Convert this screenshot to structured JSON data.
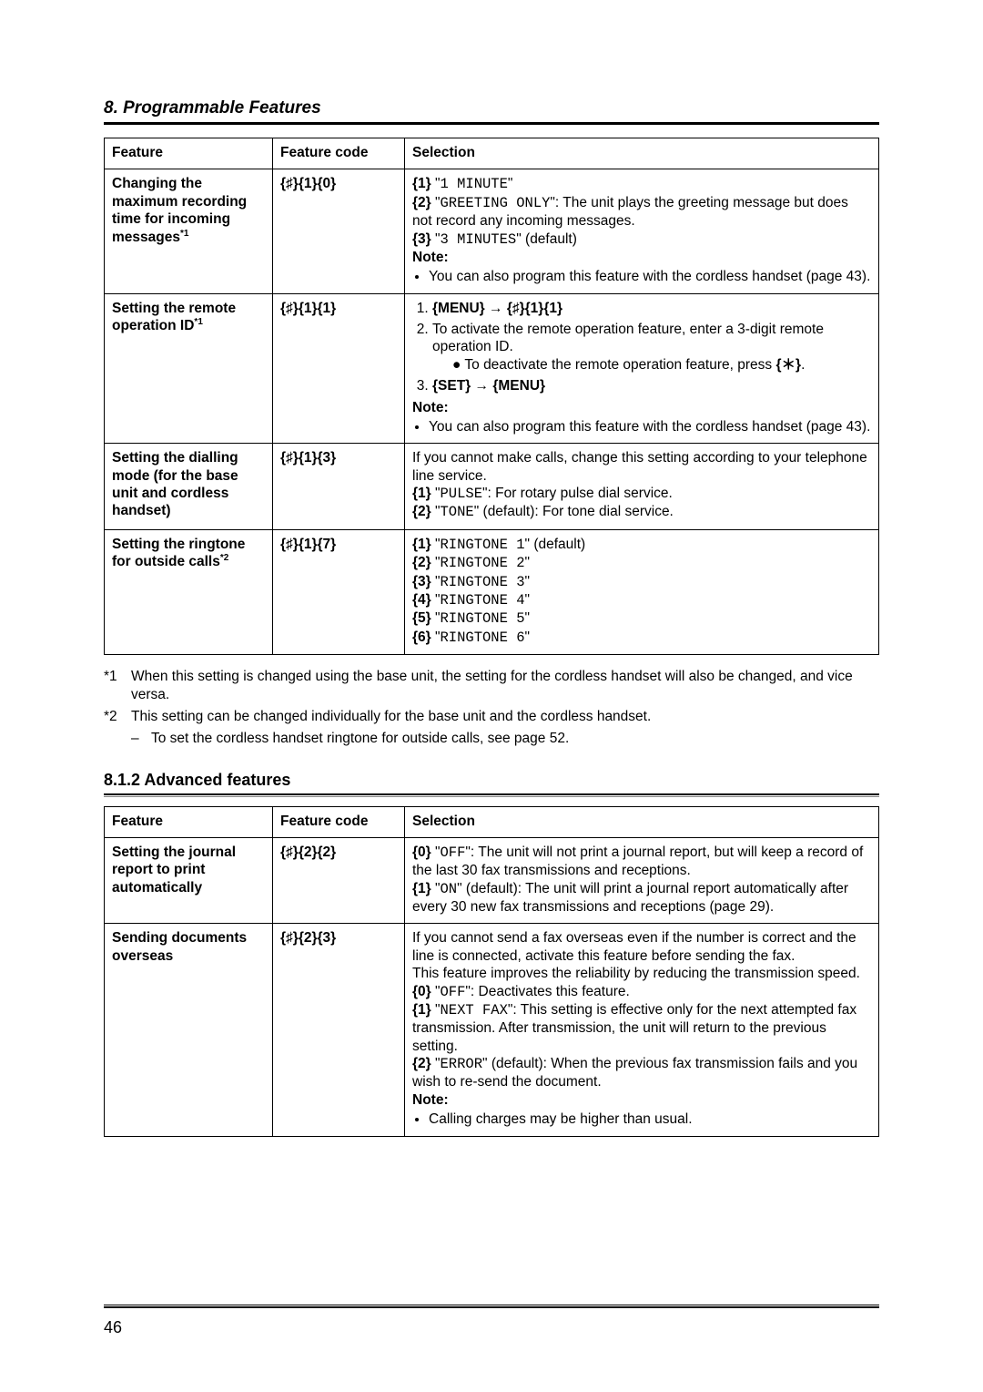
{
  "chapter": "8. Programmable Features",
  "page_number": "46",
  "table1": {
    "headers": [
      "Feature",
      "Feature code",
      "Selection"
    ],
    "rows": [
      {
        "feature_html": "<span class='b'>Changing the maximum recording time for incoming messages</span><span class='sup'>*1</span>",
        "code_html": "<span class='b'>{♯}{1}{0}</span>",
        "selection_html": "<span class='b'>{1}</span> \"<span class='mono'>1 MINUTE</span>\"<br><span class='b'>{2}</span> \"<span class='mono'>GREETING ONLY</span>\": The unit plays the greeting message but does not record any incoming messages.<br><span class='b'>{3}</span> \"<span class='mono'>3 MINUTES</span>\" (default)<br><span class='note-label'>Note:</span><ul><li class='bullet'>You can also program this feature with the cordless handset (page 43).</li></ul>"
      },
      {
        "feature_html": "<span class='b'>Setting the remote operation ID</span><span class='sup'>*1</span>",
        "code_html": "<span class='b'>{♯}{1}{1}</span>",
        "selection_html": "<ol><li><span class='b'>{MENU}</span> <span class='arrow'>→</span> <span class='b'>{♯}{1}{1}</span></li><li>To activate the remote operation feature, enter a 3-digit remote operation ID.<div class='sub-bullet'>● To deactivate the remote operation feature, press <span class='b'>{<span style='font-family:Arial'>＊</span>}</span>.</div></li><li><span class='b'>{SET}</span> <span class='arrow'>→</span> <span class='b'>{MENU}</span></li></ol><span class='note-label'>Note:</span><ul><li class='bullet'>You can also program this feature with the cordless handset (page 43).</li></ul>"
      },
      {
        "feature_html": "<span class='b'>Setting the dialling mode (for the base unit and cordless handset)</span>",
        "code_html": "<span class='b'>{♯}{1}{3}</span>",
        "selection_html": "If you cannot make calls, change this setting according to your telephone line service.<br><span class='b'>{1}</span> \"<span class='mono'>PULSE</span>\": For rotary pulse dial service.<br><span class='b'>{2}</span> \"<span class='mono'>TONE</span>\" (default): For tone dial service."
      },
      {
        "feature_html": "<span class='b'>Setting the ringtone for outside calls</span><span class='sup'>*2</span>",
        "code_html": "<span class='b'>{♯}{1}{7}</span>",
        "selection_html": "<span class='b'>{1}</span> \"<span class='mono'>RINGTONE 1</span>\" (default)<br><span class='b'>{2}</span> \"<span class='mono'>RINGTONE 2</span>\"<br><span class='b'>{3}</span> \"<span class='mono'>RINGTONE 3</span>\"<br><span class='b'>{4}</span> \"<span class='mono'>RINGTONE 4</span>\"<br><span class='b'>{5}</span> \"<span class='mono'>RINGTONE 5</span>\"<br><span class='b'>{6}</span> \"<span class='mono'>RINGTONE 6</span>\""
      }
    ]
  },
  "footnotes": {
    "f1_mark": "*1",
    "f1_text": "When this setting is changed using the base unit, the setting for the cordless handset will also be changed, and vice versa.",
    "f2_mark": "*2",
    "f2_text": "This setting can be changed individually for the base unit and the cordless handset.",
    "f2_sub_dash": "–",
    "f2_sub_text": "To set the cordless handset ringtone for outside calls, see page 52."
  },
  "section2_title": "8.1.2 Advanced features",
  "table2": {
    "headers": [
      "Feature",
      "Feature code",
      "Selection"
    ],
    "rows": [
      {
        "feature_html": "<span class='b'>Setting the journal report to print automatically</span>",
        "code_html": "<span class='b'>{♯}{2}{2}</span>",
        "selection_html": "<span class='b'>{0}</span> \"<span class='mono'>OFF</span>\": The unit will not print a journal report, but will keep a record of the last 30 fax transmissions and receptions.<br><span class='b'>{1}</span> \"<span class='mono'>ON</span>\" (default): The unit will print a journal report automatically after every 30 new fax transmissions and receptions (page 29)."
      },
      {
        "feature_html": "<span class='b'>Sending documents overseas</span>",
        "code_html": "<span class='b'>{♯}{2}{3}</span>",
        "selection_html": "If you cannot send a fax overseas even if the number is correct and the line is connected, activate this feature before sending the fax.<br>This feature improves the reliability by reducing the transmission speed.<br><span class='b'>{0}</span> \"<span class='mono'>OFF</span>\": Deactivates this feature.<br><span class='b'>{1}</span> \"<span class='mono'>NEXT FAX</span>\": This setting is effective only for the next attempted fax transmission. After transmission, the unit will return to the previous setting.<br><span class='b'>{2}</span> \"<span class='mono'>ERROR</span>\" (default): When the previous fax transmission fails and you wish to re-send the document.<br><span class='note-label'>Note:</span><ul><li class='bullet'>Calling charges may be higher than usual.</li></ul>"
      }
    ]
  },
  "colors": {
    "text": "#000000",
    "background": "#ffffff",
    "rule": "#000000"
  },
  "fonts": {
    "body": "Arial",
    "mono": "Courier New"
  }
}
